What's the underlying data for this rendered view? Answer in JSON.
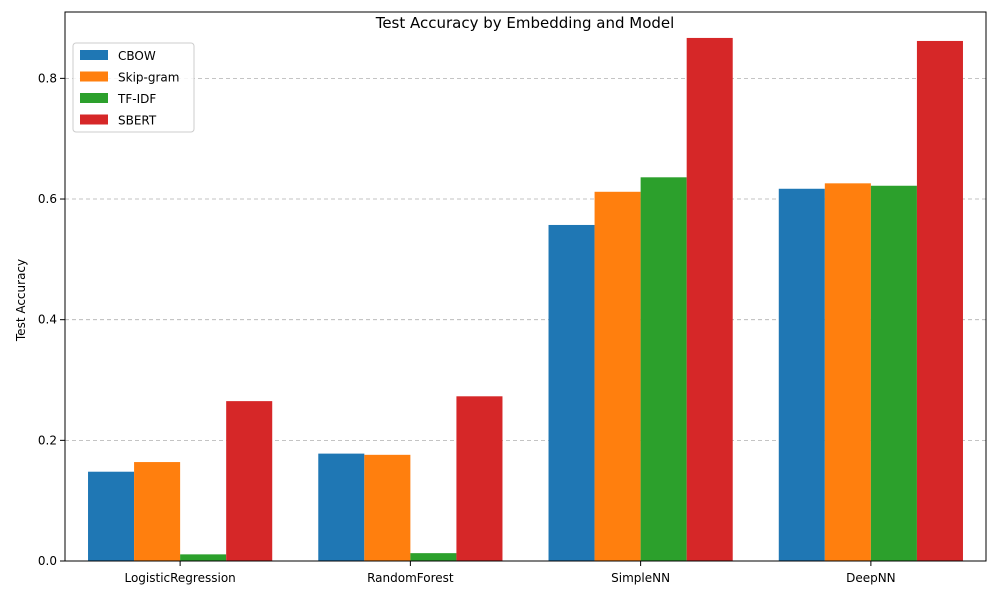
{
  "chart_data": {
    "type": "bar",
    "title": "Test Accuracy by Embedding and Model",
    "xlabel": "",
    "ylabel": "Test Accuracy",
    "categories": [
      "LogisticRegression",
      "RandomForest",
      "SimpleNN",
      "DeepNN"
    ],
    "series": [
      {
        "name": "CBOW",
        "color": "#1f77b4",
        "values": [
          0.148,
          0.178,
          0.557,
          0.617
        ]
      },
      {
        "name": "Skip-gram",
        "color": "#ff7f0e",
        "values": [
          0.164,
          0.176,
          0.612,
          0.626
        ]
      },
      {
        "name": "TF-IDF",
        "color": "#2ca02c",
        "values": [
          0.011,
          0.013,
          0.636,
          0.622
        ]
      },
      {
        "name": "SBERT",
        "color": "#d62728",
        "values": [
          0.265,
          0.273,
          0.867,
          0.862
        ]
      }
    ],
    "ylim": [
      0,
      0.91
    ],
    "yticks": [
      0.0,
      0.2,
      0.4,
      0.6,
      0.8
    ],
    "ytick_labels": [
      "0.0",
      "0.2",
      "0.4",
      "0.6",
      "0.8"
    ],
    "grid": "y-dashed",
    "legend": "top-left"
  }
}
